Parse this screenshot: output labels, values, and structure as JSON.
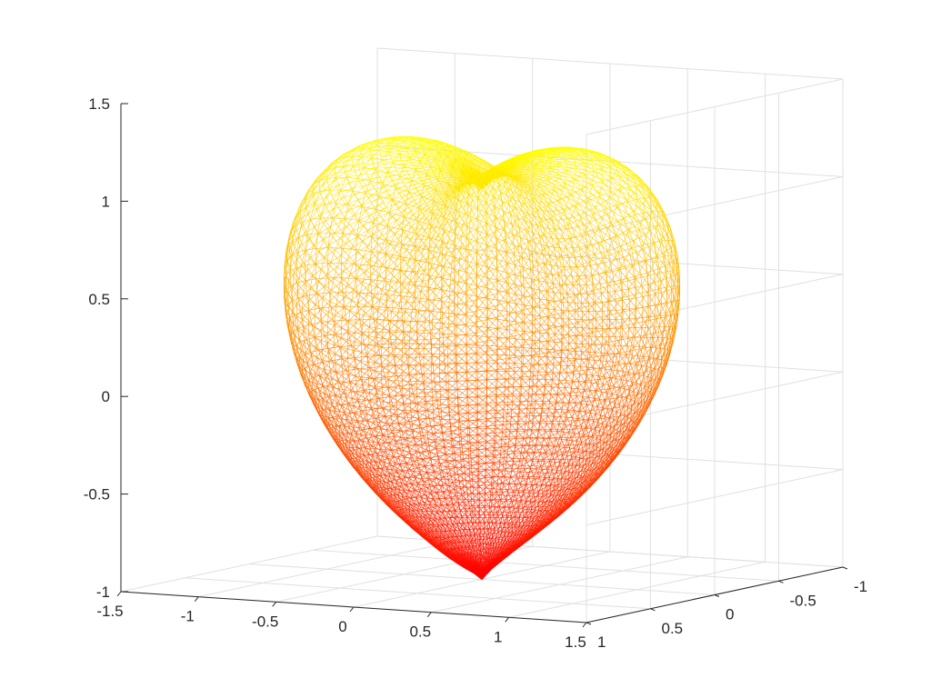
{
  "chart_data": {
    "type": "surface-mesh-3d",
    "title": "",
    "xlabel": "",
    "ylabel": "",
    "zlabel": "",
    "xlim": [
      -1.5,
      1.5
    ],
    "ylim": [
      -1,
      1
    ],
    "zlim": [
      -1,
      1.5
    ],
    "x_ticks": [
      -1.5,
      -1,
      -0.5,
      0,
      0.5,
      1,
      1.5
    ],
    "x_tick_labels": [
      "-1.5",
      "-1",
      "-0.5",
      "0",
      "0.5",
      "1",
      "1.5"
    ],
    "y_ticks": [
      -1,
      -0.5,
      0,
      0.5,
      1
    ],
    "y_tick_labels": [
      "-1",
      "-0.5",
      "0",
      "0.5",
      "1"
    ],
    "z_ticks": [
      -1,
      -0.5,
      0,
      0.5,
      1,
      1.5
    ],
    "z_tick_labels": [
      "-1",
      "-0.5",
      "0",
      "0.5",
      "1",
      "1.5"
    ],
    "grid": true,
    "surface": {
      "shape": "heart",
      "equation": "(x^2 + 9/4*y^2 + z^2 - 1)^3 - x^2*z^3 - 9/80*y^2*z^3 = 0",
      "render": "triangle wireframe",
      "colormap": "autumn",
      "color_low": "#ff0000",
      "color_high": "#ffff00",
      "x_extent": [
        -1.14,
        1.14
      ],
      "z_extent": [
        -1.0,
        1.22
      ]
    }
  }
}
